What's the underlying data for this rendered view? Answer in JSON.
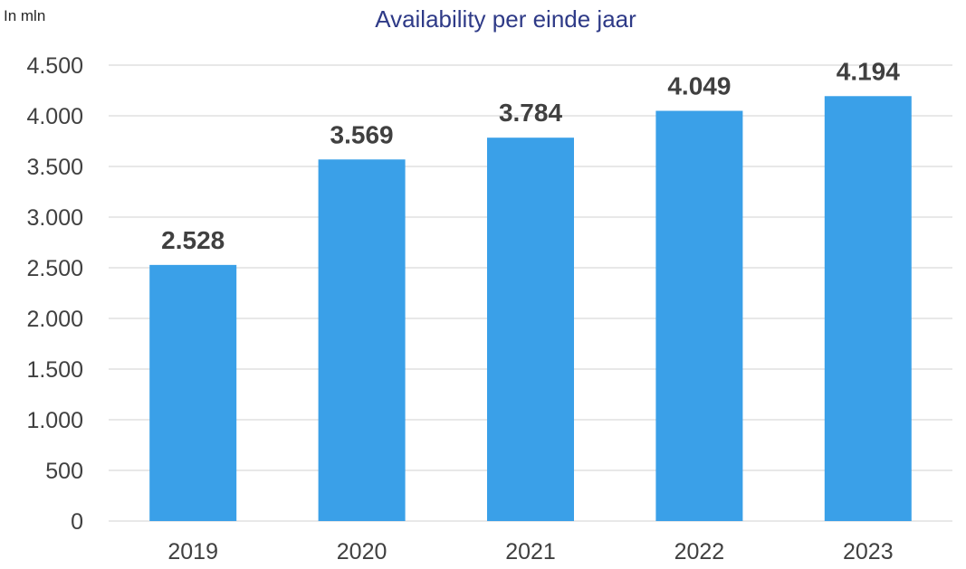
{
  "chart_data": {
    "type": "bar",
    "title": "Availability per einde jaar",
    "unit_label": "In mln",
    "categories": [
      "2019",
      "2020",
      "2021",
      "2022",
      "2023"
    ],
    "values": [
      2528,
      3569,
      3784,
      4049,
      4194
    ],
    "value_labels": [
      "2.528",
      "3.569",
      "3.784",
      "4.049",
      "4.194"
    ],
    "yticks": [
      0,
      500,
      1000,
      1500,
      2000,
      2500,
      3000,
      3500,
      4000,
      4500
    ],
    "ytick_labels": [
      "0",
      "500",
      "1.000",
      "1.500",
      "2.000",
      "2.500",
      "3.000",
      "3.500",
      "4.000",
      "4.500"
    ],
    "ylim": [
      0,
      4500
    ],
    "grid": true,
    "legend": "none"
  },
  "colors": {
    "bar": "#3aa0e8",
    "gridline": "#d9d9d9",
    "axis_text": "#404040",
    "data_label": "#404040",
    "title": "#2e3a87"
  }
}
